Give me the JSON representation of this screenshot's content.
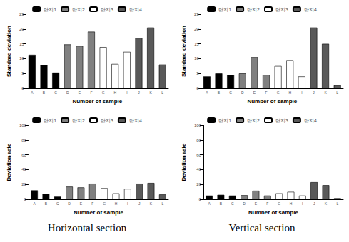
{
  "chart_data": [
    {
      "type": "bar",
      "y_label": "Standard deviation",
      "x_label": "Number of sample",
      "categories": [
        "A",
        "B",
        "C",
        "D",
        "E",
        "F",
        "G",
        "H",
        "I",
        "J",
        "K",
        "L"
      ],
      "series": [
        {
          "name": "단지1",
          "color": "#000000",
          "values": [
            11.3,
            7.8,
            5.3,
            null,
            null,
            null,
            null,
            null,
            null,
            null,
            null,
            null
          ]
        },
        {
          "name": "단지2",
          "color": "#808080",
          "values": [
            null,
            null,
            null,
            14.8,
            14.3,
            19.1,
            null,
            null,
            null,
            null,
            null,
            null
          ]
        },
        {
          "name": "단지3",
          "color": "#ffffff",
          "values": [
            null,
            null,
            null,
            null,
            null,
            null,
            13.9,
            8.2,
            12.3,
            null,
            null,
            null
          ]
        },
        {
          "name": "단지4",
          "color": "#595959",
          "values": [
            null,
            null,
            null,
            null,
            null,
            null,
            null,
            null,
            null,
            17,
            20.5,
            8
          ]
        }
      ],
      "ylim": [
        0,
        25
      ],
      "yticks": [
        0,
        5,
        10,
        15,
        20,
        25
      ]
    },
    {
      "type": "bar",
      "y_label": "Standard deviation",
      "x_label": "Number of sample",
      "categories": [
        "A",
        "B",
        "C",
        "D",
        "E",
        "F",
        "G",
        "H",
        "I",
        "J",
        "K",
        "L"
      ],
      "series": [
        {
          "name": "단지1",
          "color": "#000000",
          "values": [
            4,
            5,
            4.5,
            null,
            null,
            null,
            null,
            null,
            null,
            null,
            null,
            null
          ]
        },
        {
          "name": "단지2",
          "color": "#808080",
          "values": [
            null,
            null,
            null,
            5,
            10.5,
            4.5,
            null,
            null,
            null,
            null,
            null,
            null
          ]
        },
        {
          "name": "단지3",
          "color": "#ffffff",
          "values": [
            null,
            null,
            null,
            null,
            null,
            null,
            7.5,
            9.5,
            4,
            null,
            null,
            null
          ]
        },
        {
          "name": "단지4",
          "color": "#595959",
          "values": [
            null,
            null,
            null,
            null,
            null,
            null,
            null,
            null,
            null,
            20.5,
            15,
            1
          ]
        }
      ],
      "ylim": [
        0,
        25
      ],
      "yticks": [
        0,
        5,
        10,
        15,
        20,
        25
      ]
    },
    {
      "type": "bar",
      "y_label": "Deviation rate",
      "x_label": "Number of sample",
      "categories": [
        "A",
        "B",
        "C",
        "D",
        "E",
        "F",
        "G",
        "H",
        "I",
        "J",
        "K",
        "L"
      ],
      "series": [
        {
          "name": "단지1",
          "color": "#000000",
          "values": [
            12,
            7,
            3.5,
            null,
            null,
            null,
            null,
            null,
            null,
            null,
            null,
            null
          ]
        },
        {
          "name": "단지2",
          "color": "#808080",
          "values": [
            null,
            null,
            null,
            17,
            16,
            21,
            null,
            null,
            null,
            null,
            null,
            null
          ]
        },
        {
          "name": "단지3",
          "color": "#ffffff",
          "values": [
            null,
            null,
            null,
            null,
            null,
            null,
            15,
            8,
            14,
            null,
            null,
            null
          ]
        },
        {
          "name": "단지4",
          "color": "#595959",
          "values": [
            null,
            null,
            null,
            null,
            null,
            null,
            null,
            null,
            null,
            21,
            22,
            6.5
          ]
        }
      ],
      "ylim": [
        0,
        100
      ],
      "yticks": [
        0,
        20,
        40,
        60,
        80,
        100
      ]
    },
    {
      "type": "bar",
      "y_label": "Deviation rate",
      "x_label": "Number of sample",
      "categories": [
        "A",
        "B",
        "C",
        "D",
        "E",
        "F",
        "G",
        "H",
        "I",
        "J",
        "K",
        "L"
      ],
      "series": [
        {
          "name": "단지1",
          "color": "#000000",
          "values": [
            5,
            6,
            5,
            null,
            null,
            null,
            null,
            null,
            null,
            null,
            null,
            null
          ]
        },
        {
          "name": "단지2",
          "color": "#808080",
          "values": [
            null,
            null,
            null,
            5.5,
            11.5,
            5,
            null,
            null,
            null,
            null,
            null,
            null
          ]
        },
        {
          "name": "단지3",
          "color": "#ffffff",
          "values": [
            null,
            null,
            null,
            null,
            null,
            null,
            8,
            10,
            5,
            null,
            null,
            null
          ]
        },
        {
          "name": "단지4",
          "color": "#595959",
          "values": [
            null,
            null,
            null,
            null,
            null,
            null,
            null,
            null,
            null,
            23,
            19,
            1.5
          ]
        }
      ],
      "ylim": [
        0,
        100
      ],
      "yticks": [
        0,
        20,
        40,
        60,
        80,
        100
      ]
    }
  ],
  "captions": [
    "Horizontal section",
    "Vertical section"
  ]
}
